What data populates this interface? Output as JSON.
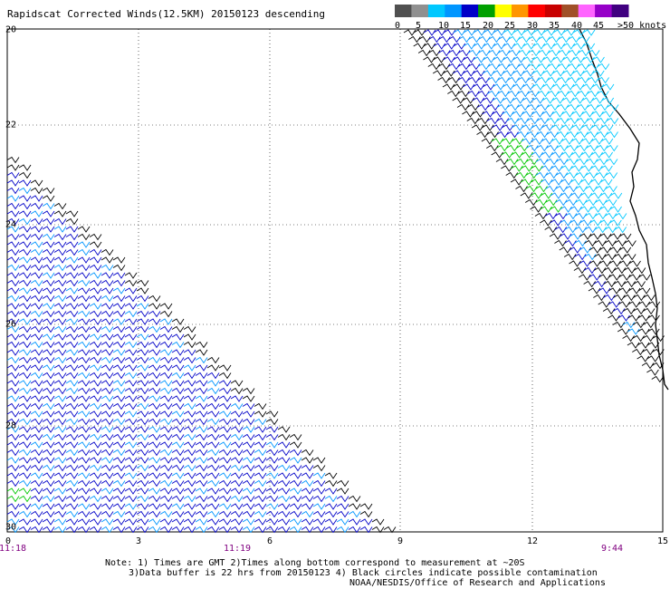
{
  "title": "Rapidscat Corrected Winds(12.5KM) 20150123 descending",
  "legend": {
    "labels": [
      "0",
      "5",
      "10",
      "15",
      "20",
      "25",
      "30",
      "35",
      "40",
      "45",
      ">50 knots"
    ],
    "colors": [
      "#505050",
      "#909090",
      "#00c8ff",
      "#0096ff",
      "#0000c8",
      "#00a000",
      "#ffff00",
      "#ff9600",
      "#ff0000",
      "#c80000",
      "#a05028",
      "#ff64ff",
      "#9600c8",
      "#400080"
    ]
  },
  "axes": {
    "y_ticks": [
      "20",
      "22",
      "24",
      "26",
      "28",
      "30"
    ],
    "x_ticks": [
      "0",
      "3",
      "6",
      "9",
      "12",
      "15"
    ],
    "times": [
      "11:18",
      "11:19",
      "9:44"
    ]
  },
  "notes": {
    "line1": "Note: 1) Times are GMT 2)Times along bottom correspond to measurement at ~20S",
    "line2": "3)Data buffer is 22 hrs from 20150123 4) Black circles indicate possible contamination",
    "line3": "NOAA/NESDIS/Office of Research and Applications"
  }
}
